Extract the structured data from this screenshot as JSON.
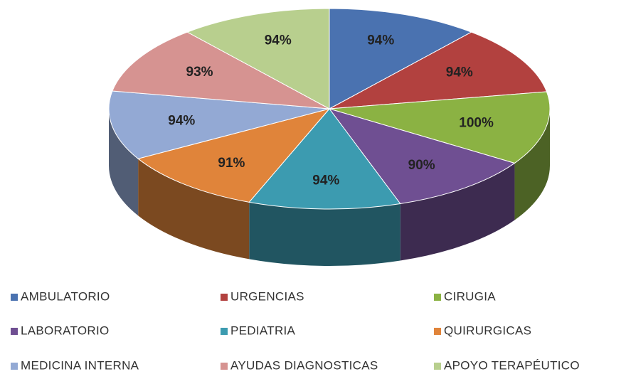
{
  "chart_data": {
    "type": "pie3d",
    "categories": [
      "AMBULATORIO",
      "URGENCIAS",
      "CIRUGIA",
      "LABORATORIO",
      "PEDIATRIA",
      "QUIRURGICAS",
      "MEDICINA INTERNA",
      "AYUDAS DIAGNOSTICAS",
      "APOYO TERAPÉUTICO"
    ],
    "values": [
      94,
      94,
      100,
      90,
      94,
      91,
      94,
      93,
      94
    ],
    "value_labels": [
      "94%",
      "94%",
      "100%",
      "90%",
      "94%",
      "91%",
      "94%",
      "93%",
      "94%"
    ],
    "colors": [
      "#4a72b0",
      "#b2413f",
      "#8bb243",
      "#6f4f92",
      "#3c9bb0",
      "#e0843a",
      "#93a9d4",
      "#d69391",
      "#b8cf8e"
    ],
    "legend": "bottom"
  }
}
